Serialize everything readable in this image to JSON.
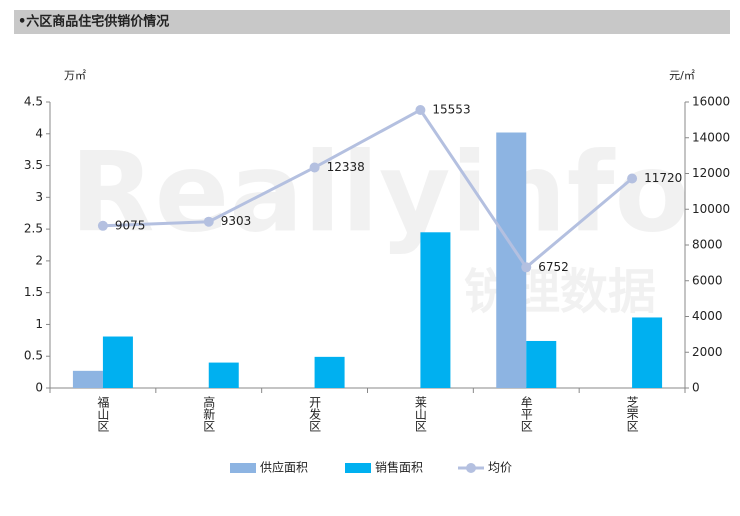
{
  "header": {
    "title": "•六区商品住宅供销价情况"
  },
  "chart_data": {
    "type": "bar-line",
    "y_unit": "万㎡",
    "y2_unit": "元/㎡",
    "watermark": [
      "Reallyinfo",
      "锐理数据"
    ],
    "categories": [
      "福山区",
      "高新区",
      "开发区",
      "莱山区",
      "牟平区",
      "芝罘区"
    ],
    "series": [
      {
        "name": "供应面积",
        "type": "bar",
        "color": "#8db4e2",
        "values": [
          0.27,
          null,
          null,
          null,
          4.02,
          null
        ]
      },
      {
        "name": "销售面积",
        "type": "bar",
        "color": "#00b0f0",
        "values": [
          0.81,
          0.4,
          0.49,
          2.45,
          0.74,
          1.11
        ]
      },
      {
        "name": "均价",
        "type": "line",
        "axis": "y2",
        "color": "#b4c0e0",
        "values": [
          9075,
          9303,
          12338,
          15553,
          6752,
          11720
        ]
      }
    ],
    "ylim": [
      0,
      4.5
    ],
    "yticks": [
      0,
      0.5,
      1,
      1.5,
      2,
      2.5,
      3,
      3.5,
      4,
      4.5
    ],
    "y2lim": [
      0,
      16000
    ],
    "y2ticks": [
      0,
      2000,
      4000,
      6000,
      8000,
      10000,
      12000,
      14000,
      16000
    ]
  }
}
